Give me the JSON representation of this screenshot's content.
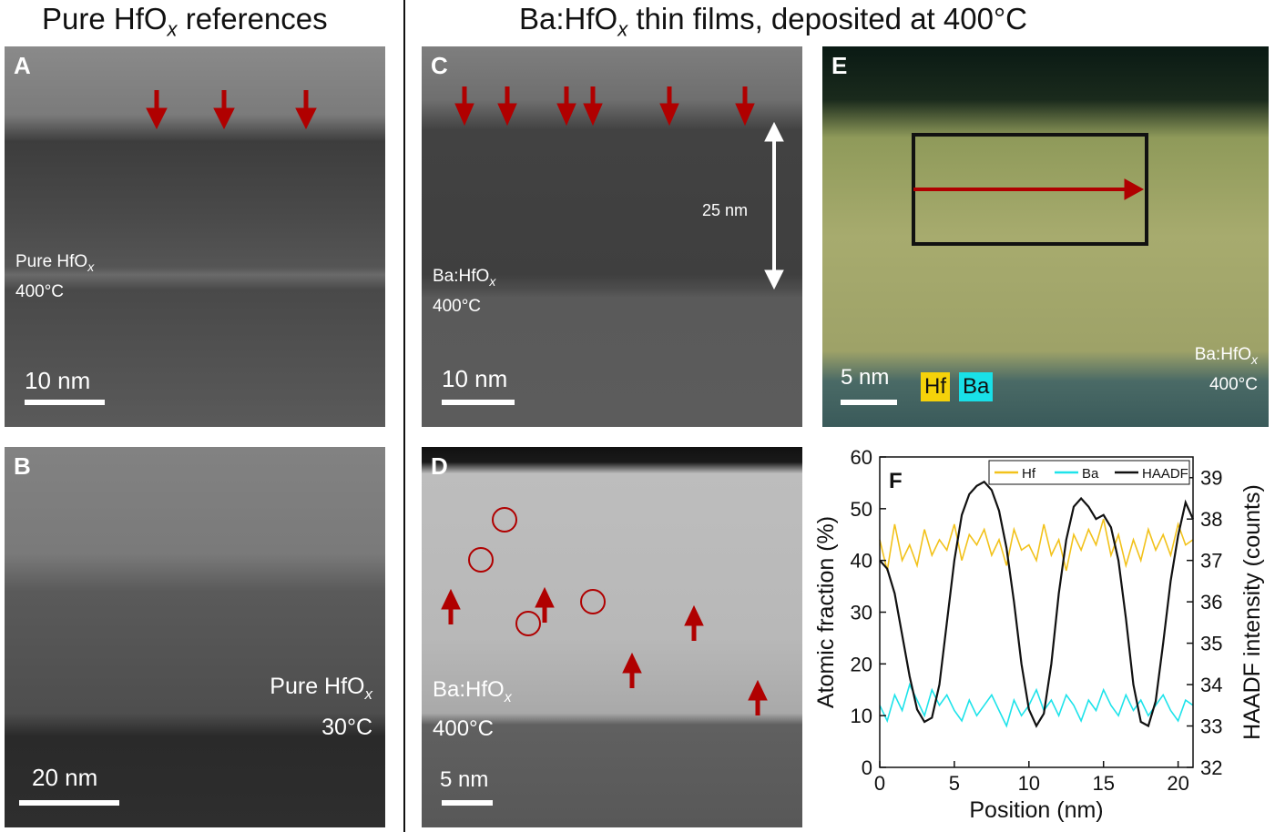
{
  "headers": {
    "left_main": "Pure HfO",
    "left_sub": "x",
    "left_tail": " references",
    "right_main": "Ba:HfO",
    "right_sub": "x",
    "right_tail": " thin films, deposited at 400°C"
  },
  "panels": {
    "A": {
      "label": "A",
      "ann_line1": "Pure HfO",
      "ann_sub": "x",
      "ann_line2": "400°C",
      "scale": "10 nm"
    },
    "B": {
      "label": "B",
      "ann_line1": "Pure HfO",
      "ann_sub": "x",
      "ann_line2": "30°C",
      "scale": "20 nm"
    },
    "C": {
      "label": "C",
      "ann_line1": "Ba:HfO",
      "ann_sub": "x",
      "ann_line2": "400°C",
      "scale": "10 nm",
      "thickness": "25 nm"
    },
    "D": {
      "label": "D",
      "ann_line1": "Ba:HfO",
      "ann_sub": "x",
      "ann_line2": "400°C",
      "scale": "5 nm"
    },
    "E": {
      "label": "E",
      "ann_line1": "Ba:HfO",
      "ann_sub": "x",
      "ann_line2": "400°C",
      "scale": "5 nm",
      "hf_tag": "Hf",
      "ba_tag": "Ba"
    },
    "F": {
      "label": "F"
    }
  },
  "colors": {
    "arrow_red": "#b00000",
    "hf_yellow": "#f5d20a",
    "ba_cyan": "#19e0e8"
  },
  "chart_data": {
    "type": "line",
    "xlabel": "Position (nm)",
    "ylabel": "Atomic fraction (%)",
    "y2label": "HAADF intensity (counts)",
    "xlim": [
      0,
      21
    ],
    "ylim": [
      0,
      60
    ],
    "y2lim": [
      32,
      39.5
    ],
    "xticks": [
      0,
      5,
      10,
      15,
      20
    ],
    "yticks": [
      0,
      10,
      20,
      30,
      40,
      50,
      60
    ],
    "y2ticks": [
      32,
      33,
      34,
      35,
      36,
      37,
      38,
      39
    ],
    "legend": {
      "placement": "top-right",
      "entries": [
        "Hf",
        "Ba",
        "HAADF"
      ]
    },
    "series": [
      {
        "name": "Hf",
        "axis": "left",
        "color": "#f2c21b",
        "x": [
          0,
          0.5,
          1,
          1.5,
          2,
          2.5,
          3,
          3.5,
          4,
          4.5,
          5,
          5.5,
          6,
          6.5,
          7,
          7.5,
          8,
          8.5,
          9,
          9.5,
          10,
          10.5,
          11,
          11.5,
          12,
          12.5,
          13,
          13.5,
          14,
          14.5,
          15,
          15.5,
          16,
          16.5,
          17,
          17.5,
          18,
          18.5,
          19,
          19.5,
          20,
          20.5,
          21
        ],
        "y": [
          44,
          38,
          47,
          40,
          43,
          39,
          46,
          41,
          44,
          42,
          47,
          40,
          45,
          43,
          46,
          41,
          44,
          39,
          46,
          42,
          43,
          40,
          47,
          41,
          44,
          38,
          45,
          42,
          46,
          43,
          48,
          41,
          45,
          39,
          44,
          40,
          46,
          42,
          45,
          41,
          47,
          43,
          44
        ]
      },
      {
        "name": "Ba",
        "axis": "left",
        "color": "#1ee3ea",
        "x": [
          0,
          0.5,
          1,
          1.5,
          2,
          2.5,
          3,
          3.5,
          4,
          4.5,
          5,
          5.5,
          6,
          6.5,
          7,
          7.5,
          8,
          8.5,
          9,
          9.5,
          10,
          10.5,
          11,
          11.5,
          12,
          12.5,
          13,
          13.5,
          14,
          14.5,
          15,
          15.5,
          16,
          16.5,
          17,
          17.5,
          18,
          18.5,
          19,
          19.5,
          20,
          20.5,
          21
        ],
        "y": [
          12,
          9,
          14,
          11,
          16,
          13,
          10,
          15,
          12,
          14,
          11,
          9,
          13,
          10,
          12,
          14,
          11,
          8,
          13,
          10,
          12,
          15,
          11,
          13,
          10,
          14,
          12,
          9,
          13,
          11,
          15,
          12,
          10,
          14,
          11,
          13,
          10,
          12,
          14,
          11,
          9,
          13,
          12
        ]
      },
      {
        "name": "HAADF",
        "axis": "right",
        "color": "#111111",
        "x": [
          0,
          0.5,
          1,
          1.5,
          2,
          2.5,
          3,
          3.5,
          4,
          4.5,
          5,
          5.5,
          6,
          6.5,
          7,
          7.5,
          8,
          8.5,
          9,
          9.5,
          10,
          10.5,
          11,
          11.5,
          12,
          12.5,
          13,
          13.5,
          14,
          14.5,
          15,
          15.5,
          16,
          16.5,
          17,
          17.5,
          18,
          18.5,
          19,
          19.5,
          20,
          20.5,
          21
        ],
        "y": [
          37.0,
          36.8,
          36.2,
          35.2,
          34.2,
          33.4,
          33.1,
          33.2,
          34.0,
          35.5,
          37.0,
          38.1,
          38.6,
          38.8,
          38.9,
          38.7,
          38.2,
          37.3,
          36.0,
          34.5,
          33.4,
          33.0,
          33.3,
          34.5,
          36.2,
          37.5,
          38.3,
          38.5,
          38.3,
          38.0,
          38.1,
          37.8,
          37.0,
          35.6,
          34.0,
          33.1,
          33.0,
          33.6,
          35.0,
          36.5,
          37.6,
          38.4,
          38.0
        ]
      }
    ]
  }
}
